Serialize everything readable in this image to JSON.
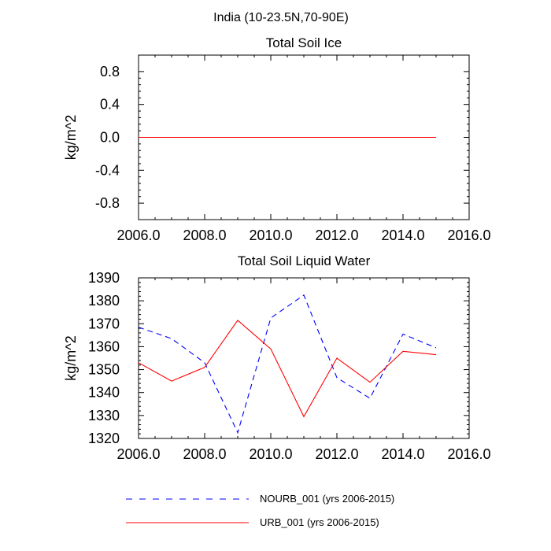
{
  "figure": {
    "title": "India (10-23.5N,70-90E)"
  },
  "chart_data": [
    {
      "type": "line",
      "title": "Total Soil Ice",
      "xlabel": "",
      "ylabel": "kg/m^2",
      "xlim": [
        2006,
        2016
      ],
      "ylim": [
        -1.0,
        1.0
      ],
      "xticks": [
        2006,
        2008,
        2010,
        2012,
        2014,
        2016
      ],
      "xtick_labels": [
        "2006.0",
        "2008.0",
        "2010.0",
        "2012.0",
        "2014.0",
        "2016.0"
      ],
      "yticks": [
        -0.8,
        -0.4,
        0.0,
        0.4,
        0.8
      ],
      "ytick_labels": [
        "-0.8",
        "-0.4",
        "0.0",
        "0.4",
        "0.8"
      ],
      "grid": false,
      "x": [
        2006,
        2007,
        2008,
        2009,
        2010,
        2011,
        2012,
        2013,
        2014,
        2015
      ],
      "series": [
        {
          "name": "NOURB_001 (yrs 2006-2015)",
          "color": "#0000ff",
          "style": "dashed",
          "values": [
            0,
            0,
            0,
            0,
            0,
            0,
            0,
            0,
            0,
            0
          ]
        },
        {
          "name": "URB_001 (yrs 2006-2015)",
          "color": "#ff0000",
          "style": "solid",
          "values": [
            0,
            0,
            0,
            0,
            0,
            0,
            0,
            0,
            0,
            0
          ]
        }
      ]
    },
    {
      "type": "line",
      "title": "Total Soil Liquid Water",
      "xlabel": "",
      "ylabel": "kg/m^2",
      "xlim": [
        2006,
        2016
      ],
      "ylim": [
        1320,
        1390
      ],
      "xticks": [
        2006,
        2008,
        2010,
        2012,
        2014,
        2016
      ],
      "xtick_labels": [
        "2006.0",
        "2008.0",
        "2010.0",
        "2012.0",
        "2014.0",
        "2016.0"
      ],
      "yticks": [
        1320,
        1330,
        1340,
        1350,
        1360,
        1370,
        1380,
        1390
      ],
      "ytick_labels": [
        "1320",
        "1330",
        "1340",
        "1350",
        "1360",
        "1370",
        "1380",
        "1390"
      ],
      "grid": false,
      "x": [
        2006,
        2007,
        2008,
        2009,
        2010,
        2011,
        2012,
        2013,
        2014,
        2015
      ],
      "series": [
        {
          "name": "NOURB_001 (yrs 2006-2015)",
          "color": "#0000ff",
          "style": "dashed",
          "values": [
            1368.5,
            1363.5,
            1353.0,
            1322.5,
            1372.5,
            1382.5,
            1346.5,
            1337.5,
            1365.5,
            1359.5
          ]
        },
        {
          "name": "URB_001 (yrs 2006-2015)",
          "color": "#ff0000",
          "style": "solid",
          "values": [
            1353.0,
            1345.0,
            1351.0,
            1371.5,
            1359.0,
            1329.5,
            1355.0,
            1344.5,
            1358.0,
            1356.5
          ]
        }
      ]
    }
  ],
  "legend": {
    "placement": "bottom",
    "items": [
      {
        "label": "NOURB_001 (yrs 2006-2015)",
        "color": "#0000ff",
        "style": "dashed"
      },
      {
        "label": "URB_001 (yrs 2006-2015)",
        "color": "#ff0000",
        "style": "solid"
      }
    ]
  }
}
